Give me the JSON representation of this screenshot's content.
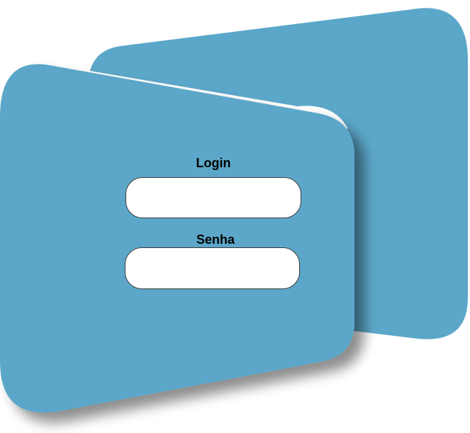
{
  "colors": {
    "panel": "#5ba7c9",
    "panel_shadow": "#3f7e9b",
    "input_bg": "#ffffff",
    "input_border": "#3a3a3a",
    "label_text": "#000000"
  },
  "form": {
    "login": {
      "label": "Login",
      "value": "",
      "placeholder": ""
    },
    "senha": {
      "label": "Senha",
      "value": "",
      "placeholder": ""
    }
  }
}
